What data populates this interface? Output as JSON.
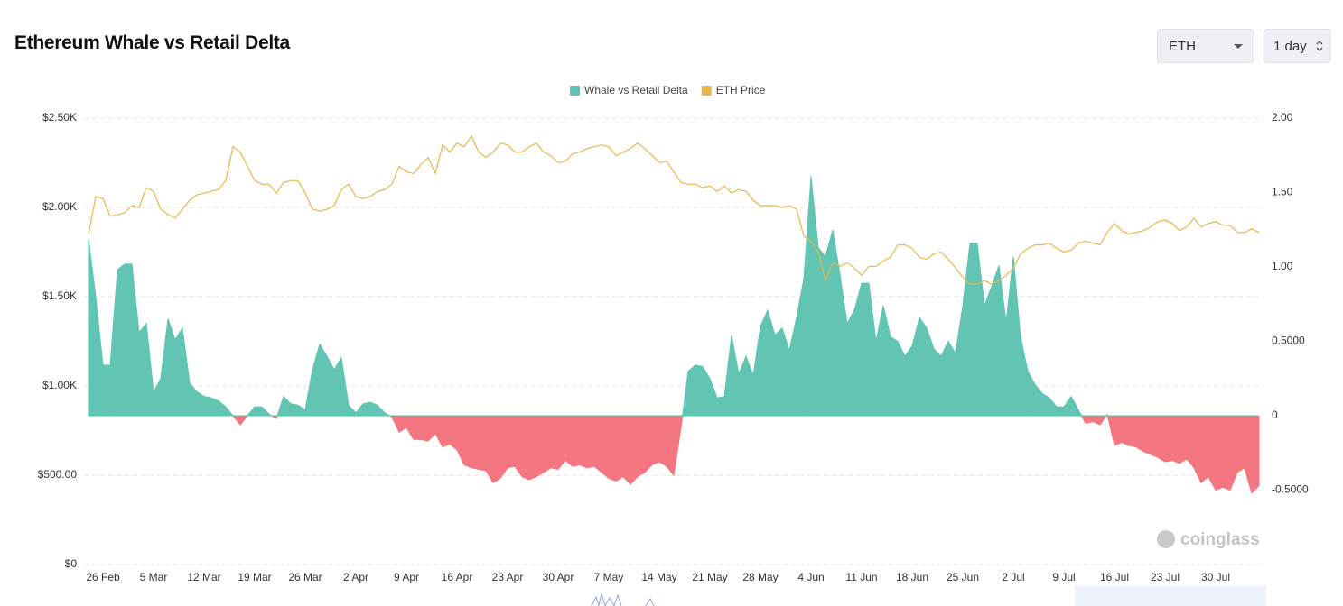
{
  "header": {
    "title": "Ethereum Whale vs Retail Delta"
  },
  "controls": {
    "symbol": "ETH",
    "interval": "1 day"
  },
  "watermark": "coinglass",
  "chart_data": {
    "type": "area",
    "categories": [
      null,
      null,
      "26 Feb",
      null,
      null,
      null,
      null,
      null,
      null,
      "5 Mar",
      null,
      null,
      null,
      null,
      null,
      null,
      "12 Mar",
      null,
      null,
      null,
      null,
      null,
      null,
      "19 Mar",
      null,
      null,
      null,
      null,
      null,
      null,
      "26 Mar",
      null,
      null,
      null,
      null,
      null,
      null,
      "2 Apr",
      null,
      null,
      null,
      null,
      null,
      null,
      "9 Apr",
      null,
      null,
      null,
      null,
      null,
      null,
      "16 Apr",
      null,
      null,
      null,
      null,
      null,
      null,
      "23 Apr",
      null,
      null,
      null,
      null,
      null,
      null,
      "30 Apr",
      null,
      null,
      null,
      null,
      null,
      null,
      "7 May",
      null,
      null,
      null,
      null,
      null,
      null,
      "14 May",
      null,
      null,
      null,
      null,
      null,
      null,
      "21 May",
      null,
      null,
      null,
      null,
      null,
      null,
      "28 May",
      null,
      null,
      null,
      null,
      null,
      null,
      "4 Jun",
      null,
      null,
      null,
      null,
      null,
      null,
      "11 Jun",
      null,
      null,
      null,
      null,
      null,
      null,
      "18 Jun",
      null,
      null,
      null,
      null,
      null,
      null,
      "25 Jun",
      null,
      null,
      null,
      null,
      null,
      null,
      "2 Jul",
      null,
      null,
      null,
      null,
      null,
      null,
      "9 Jul",
      null,
      null,
      null,
      null,
      null,
      null,
      "16 Jul",
      null,
      null,
      null,
      null,
      null,
      null,
      "23 Jul",
      null,
      null,
      null,
      null,
      null,
      null,
      "30 Jul",
      null,
      null,
      null,
      null,
      null,
      null
    ],
    "series": [
      {
        "name": "Whale vs Retail Delta",
        "type": "area",
        "axis": "y2",
        "color": "#5fc4b3",
        "negative_color": "#f4737d",
        "values": [
          1.19,
          0.8,
          0.34,
          0.34,
          0.98,
          1.02,
          1.02,
          0.56,
          0.62,
          0.16,
          0.25,
          0.65,
          0.51,
          0.59,
          0.22,
          0.16,
          0.13,
          0.12,
          0.1,
          0.06,
          0,
          -0.06,
          0,
          0.06,
          0.06,
          0.01,
          -0.02,
          0.13,
          0.08,
          0.07,
          0.04,
          0.31,
          0.48,
          0.4,
          0.31,
          0.39,
          0.07,
          0.02,
          0.08,
          0.09,
          0.07,
          0.02,
          -0.01,
          -0.11,
          -0.08,
          -0.16,
          -0.16,
          -0.17,
          -0.12,
          -0.21,
          -0.19,
          -0.23,
          -0.33,
          -0.35,
          -0.36,
          -0.37,
          -0.45,
          -0.42,
          -0.35,
          -0.34,
          -0.41,
          -0.43,
          -0.41,
          -0.38,
          -0.35,
          -0.36,
          -0.3,
          -0.34,
          -0.33,
          -0.35,
          -0.34,
          -0.38,
          -0.42,
          -0.44,
          -0.41,
          -0.46,
          -0.41,
          -0.38,
          -0.33,
          -0.31,
          -0.34,
          -0.4,
          -0.08,
          0.3,
          0.34,
          0.33,
          0.25,
          0.12,
          0.13,
          0.54,
          0.28,
          0.4,
          0.27,
          0.6,
          0.71,
          0.54,
          0.59,
          0.44,
          0.66,
          0.92,
          1.61,
          1.13,
          1.07,
          1.25,
          0.95,
          0.62,
          0.71,
          0.89,
          0.89,
          0.5,
          0.74,
          0.53,
          0.5,
          0.4,
          0.47,
          0.66,
          0.59,
          0.45,
          0.4,
          0.5,
          0.42,
          0.74,
          1.16,
          1.16,
          0.74,
          0.87,
          1.01,
          0.63,
          1.07,
          0.53,
          0.3,
          0.21,
          0.15,
          0.12,
          0.06,
          0.06,
          0.13,
          0.04,
          -0.05,
          -0.04,
          -0.06,
          0.01,
          -0.2,
          -0.18,
          -0.2,
          -0.21,
          -0.24,
          -0.26,
          -0.28,
          -0.31,
          -0.3,
          -0.32,
          -0.29,
          -0.35,
          -0.45,
          -0.41,
          -0.5,
          -0.48,
          -0.5,
          -0.38,
          -0.35,
          -0.52,
          -0.47
        ]
      },
      {
        "name": "ETH Price",
        "type": "line",
        "color": "#e8b64c",
        "values": [
          1850,
          2060,
          2050,
          1950,
          1960,
          1970,
          2010,
          2000,
          2110,
          2090,
          1990,
          1960,
          1940,
          1990,
          2040,
          2070,
          2080,
          2090,
          2100,
          2150,
          2340,
          2310,
          2230,
          2150,
          2130,
          2130,
          2080,
          2140,
          2150,
          2150,
          2080,
          1990,
          1980,
          1990,
          2010,
          2100,
          2130,
          2060,
          2050,
          2060,
          2090,
          2100,
          2130,
          2230,
          2200,
          2190,
          2240,
          2280,
          2190,
          2350,
          2310,
          2360,
          2340,
          2400,
          2310,
          2280,
          2310,
          2360,
          2350,
          2310,
          2310,
          2340,
          2360,
          2310,
          2290,
          2250,
          2260,
          2300,
          2310,
          2330,
          2340,
          2350,
          2340,
          2290,
          2310,
          2330,
          2360,
          2330,
          2290,
          2250,
          2260,
          2200,
          2140,
          2130,
          2130,
          2110,
          2120,
          2090,
          2120,
          2080,
          2100,
          2090,
          2040,
          2010,
          2010,
          2010,
          2000,
          2010,
          1990,
          1840,
          1810,
          1750,
          1590,
          1690,
          1670,
          1690,
          1660,
          1620,
          1670,
          1670,
          1700,
          1720,
          1790,
          1790,
          1770,
          1720,
          1710,
          1740,
          1750,
          1710,
          1660,
          1610,
          1570,
          1570,
          1590,
          1570,
          1590,
          1620,
          1660,
          1740,
          1770,
          1790,
          1790,
          1800,
          1770,
          1750,
          1760,
          1800,
          1810,
          1800,
          1790,
          1860,
          1910,
          1870,
          1850,
          1860,
          1870,
          1890,
          1920,
          1930,
          1910,
          1870,
          1890,
          1940,
          1890,
          1910,
          1920,
          1900,
          1900,
          1860,
          1860,
          1880,
          1860
        ]
      }
    ],
    "ylim": [
      0,
      2500
    ],
    "yticks": [
      {
        "value": 0,
        "label": "$0"
      },
      {
        "value": 500,
        "label": "$500.00"
      },
      {
        "value": 1000,
        "label": "$1.00K"
      },
      {
        "value": 1500,
        "label": "$1.50K"
      },
      {
        "value": 2000,
        "label": "$2.00K"
      },
      {
        "value": 2500,
        "label": "$2.50K"
      }
    ],
    "y2lim": [
      -1,
      2
    ],
    "y2ticks": [
      {
        "value": -0.5,
        "label": "-0.5000"
      },
      0,
      {
        "value": 0.5,
        "label": "0.5000"
      },
      {
        "value": 1,
        "label": "1.00"
      },
      {
        "value": 1.5,
        "label": "1.50"
      },
      {
        "value": 2,
        "label": "2.00"
      }
    ],
    "grid": true,
    "legend": "top"
  }
}
